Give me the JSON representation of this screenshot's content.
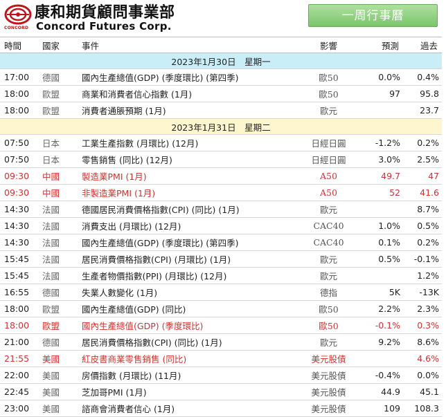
{
  "brand": {
    "name_cn": "康和期貨顧問事業部",
    "name_en": "Concord Futures Corp.",
    "mark_text": "CONCORD"
  },
  "week_button_label": "一周行事曆",
  "columns": {
    "time": "時間",
    "country": "國家",
    "event": "事件",
    "impact": "影響",
    "forecast": "預測",
    "previous": "過去"
  },
  "days": [
    {
      "date": "2023年1月30日　星期一",
      "rows": [
        {
          "time": "17:00",
          "country": "德國",
          "event": "國內生產總值(GDP) (季度環比) (第四季)",
          "impact": "歐50",
          "forecast": "0.0%",
          "previous": "0.4%",
          "highlight": false
        },
        {
          "time": "18:00",
          "country": "歐盟",
          "event": "商業和消費者信心指數 (1月)",
          "impact": "歐50",
          "forecast": "97",
          "previous": "95.8",
          "highlight": false
        },
        {
          "time": "18:00",
          "country": "歐盟",
          "event": "消費者通脹預期 (1月)",
          "impact": "歐元",
          "forecast": "",
          "previous": "23.7",
          "highlight": false
        }
      ]
    },
    {
      "date": "2023年1月31日　星期二",
      "rows": [
        {
          "time": "07:50",
          "country": "日本",
          "event": "工業生產指數 (月環比) (12月)",
          "impact": "日經日圓",
          "forecast": "-1.2%",
          "previous": "0.2%",
          "highlight": false
        },
        {
          "time": "07:50",
          "country": "日本",
          "event": "零售銷售 (同比) (12月)",
          "impact": "日經日圓",
          "forecast": "3.0%",
          "previous": "2.5%",
          "highlight": false
        },
        {
          "time": "09:30",
          "country": "中國",
          "event": "製造業PMI (1月)",
          "impact": "A50",
          "forecast": "49.7",
          "previous": "47",
          "highlight": true
        },
        {
          "time": "09:30",
          "country": "中國",
          "event": "非製造業PMI (1月)",
          "impact": "A50",
          "forecast": "52",
          "previous": "41.6",
          "highlight": true
        },
        {
          "time": "14:30",
          "country": "法國",
          "event": "德國居民消費價格指數(CPI) (同比) (1月)",
          "impact": "歐元",
          "forecast": "",
          "previous": "8.7%",
          "highlight": false
        },
        {
          "time": "14:30",
          "country": "法國",
          "event": "消費支出 (月環比) (12月)",
          "impact": "CAC40",
          "forecast": "1.0%",
          "previous": "0.5%",
          "highlight": false
        },
        {
          "time": "14:30",
          "country": "法國",
          "event": "國內生產總值(GDP) (季度環比) (第四季)",
          "impact": "CAC40",
          "forecast": "0.1%",
          "previous": "0.2%",
          "highlight": false
        },
        {
          "time": "15:45",
          "country": "法國",
          "event": "居民消費價格指數(CPI) (月環比) (1月)",
          "impact": "歐元",
          "forecast": "0.5%",
          "previous": "-0.1%",
          "highlight": false
        },
        {
          "time": "15:45",
          "country": "法國",
          "event": "生產者物價指數(PPI) (月環比) (12月)",
          "impact": "歐元",
          "forecast": "",
          "previous": "1.2%",
          "highlight": false
        },
        {
          "time": "16:55",
          "country": "德國",
          "event": "失業人數變化 (1月)",
          "impact": "德指",
          "forecast": "5K",
          "previous": "-13K",
          "highlight": false
        },
        {
          "time": "18:00",
          "country": "歐盟",
          "event": "國內生產總值(GDP) (同比)",
          "impact": "歐50",
          "forecast": "2.2%",
          "previous": "2.3%",
          "highlight": false
        },
        {
          "time": "18:00",
          "country": "歐盟",
          "event": "國內生產總值(GDP) (季度環比)",
          "impact": "歐50",
          "forecast": "-0.1%",
          "previous": "0.3%",
          "highlight": true
        },
        {
          "time": "21:00",
          "country": "德國",
          "event": "居民消費價格指數(CPI) (同比) (1月)",
          "impact": "歐元",
          "forecast": "9.2%",
          "previous": "8.6%",
          "highlight": false
        },
        {
          "time": "21:55",
          "country": "美國",
          "event": "紅皮書商業零售銷售 (同比)",
          "impact": "美元股債",
          "forecast": "",
          "previous": "4.6%",
          "highlight": true
        },
        {
          "time": "22:00",
          "country": "美國",
          "event": "房價指數 (月環比) (11月)",
          "impact": "美元股債",
          "forecast": "-0.4%",
          "previous": "0.0%",
          "highlight": false
        },
        {
          "time": "22:45",
          "country": "美國",
          "event": "芝加哥PMI (1月)",
          "impact": "美元股債",
          "forecast": "44.9",
          "previous": "45.1",
          "highlight": false
        },
        {
          "time": "23:00",
          "country": "美國",
          "event": "諮商會消費者信心 (1月)",
          "impact": "美元股債",
          "forecast": "109",
          "previous": "108.3",
          "highlight": false
        }
      ]
    }
  ],
  "colors": {
    "brand_red": "#c0141b",
    "highlight_red": "#d03030",
    "day1_band": "#c9eef8",
    "day2_band": "#fdf6cf",
    "button_green": "#7cc56c"
  }
}
